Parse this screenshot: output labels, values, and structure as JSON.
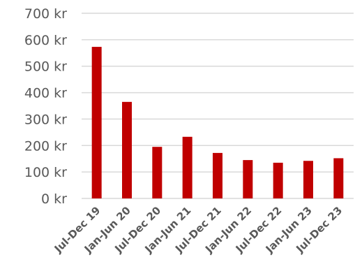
{
  "chart_data": {
    "type": "bar",
    "categories": [
      "Jul-Dec 19",
      "Jan-Jun 20",
      "Jul-Dec 20",
      "Jan-Jun 21",
      "Jul-Dec 21",
      "Jan-Jun 22",
      "Jul-Dec 22",
      "Jan-Jun 23",
      "Jul-Dec 23"
    ],
    "values": [
      573,
      365,
      195,
      233,
      172,
      145,
      135,
      142,
      152
    ],
    "ylim": [
      0,
      700
    ],
    "yticks": [
      0,
      100,
      200,
      300,
      400,
      500,
      600,
      700
    ],
    "y_tick_labels": [
      "0 kr",
      "100 kr",
      "200 kr",
      "300 kr",
      "400 kr",
      "500 kr",
      "600 kr",
      "700 kr"
    ],
    "grid": true,
    "legend": "none",
    "colors": {
      "bar": "#c00000"
    }
  }
}
